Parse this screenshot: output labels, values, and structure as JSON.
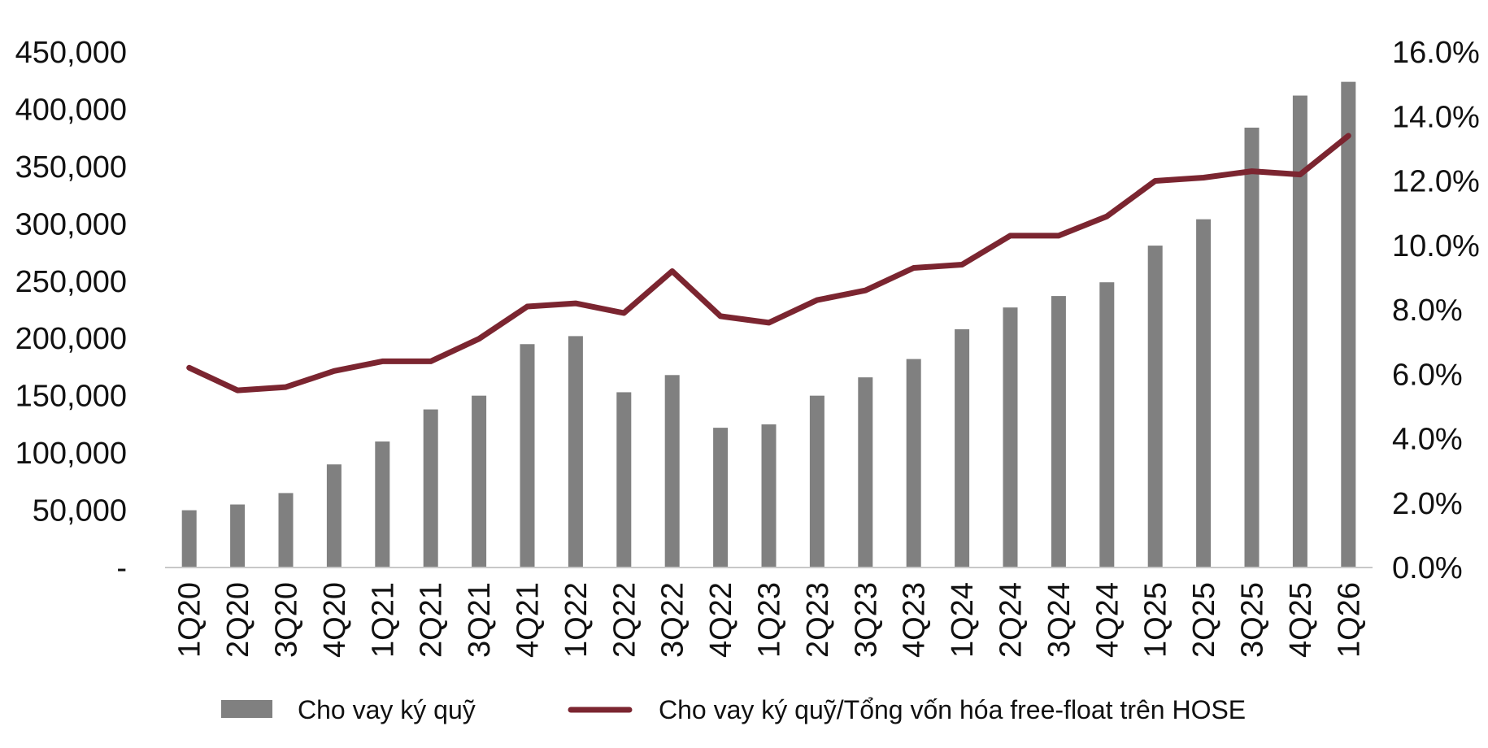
{
  "colors": {
    "bar": "#808080",
    "line": "#7b2530",
    "axis": "#c8c8c8",
    "text": "#111111"
  },
  "chart_data": {
    "type": "bar+line",
    "categories": [
      "1Q20",
      "2Q20",
      "3Q20",
      "4Q20",
      "1Q21",
      "2Q21",
      "3Q21",
      "4Q21",
      "1Q22",
      "2Q22",
      "3Q22",
      "4Q22",
      "1Q23",
      "2Q23",
      "3Q23",
      "4Q23",
      "1Q24",
      "2Q24",
      "3Q24",
      "4Q24",
      "1Q25",
      "2Q25",
      "3Q25",
      "4Q25",
      "1Q26"
    ],
    "series": [
      {
        "name": "Cho vay ký quỹ",
        "type": "bar",
        "axis": "left",
        "values": [
          50000,
          55000,
          65000,
          90000,
          110000,
          138000,
          150000,
          195000,
          202000,
          153000,
          168000,
          122000,
          125000,
          150000,
          166000,
          182000,
          208000,
          227000,
          237000,
          249000,
          281000,
          304000,
          384000,
          412000,
          424000
        ]
      },
      {
        "name": "Cho vay ký quỹ/Tổng vốn hóa free-float trên HOSE",
        "type": "line",
        "axis": "right",
        "values": [
          6.2,
          5.5,
          5.6,
          6.1,
          6.4,
          6.4,
          7.1,
          8.1,
          8.2,
          7.9,
          9.2,
          7.8,
          7.6,
          8.3,
          8.6,
          9.3,
          9.4,
          10.3,
          10.3,
          10.9,
          12.0,
          12.1,
          12.3,
          12.2,
          13.4
        ]
      }
    ],
    "y_left": {
      "ylim": [
        0,
        450000
      ],
      "ticks": [
        "-",
        "50,000",
        "100,000",
        "150,000",
        "200,000",
        "250,000",
        "300,000",
        "350,000",
        "400,000",
        "450,000"
      ]
    },
    "y_right": {
      "ylim": [
        0,
        16
      ],
      "ticks": [
        "0.0%",
        "2.0%",
        "4.0%",
        "6.0%",
        "8.0%",
        "10.0%",
        "12.0%",
        "14.0%",
        "16.0%"
      ]
    },
    "grid": false,
    "legend_position": "bottom"
  }
}
